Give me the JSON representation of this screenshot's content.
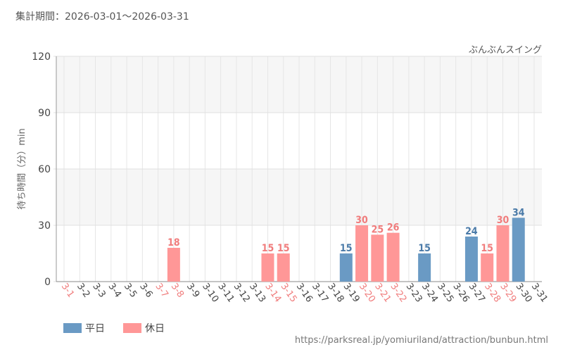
{
  "header": {
    "period": "集計期間：2026-03-01～2026-03-31"
  },
  "source_url": "https://parksreal.jp/yomiuriland/attraction/bunbun.html",
  "colors": {
    "weekday": "#6a9ac4",
    "holiday": "#ff9797",
    "weekday_text": "#4a7aa8",
    "holiday_text": "#f07c7c",
    "axis_text": "#555555"
  },
  "chart_data": {
    "type": "bar",
    "title": "ぶんぶんスイング",
    "ylabel": "待ち時間（分）min",
    "ylim": [
      0,
      120
    ],
    "yticks": [
      0,
      30,
      60,
      90,
      120
    ],
    "grid": true,
    "legend_position": "bottom-left",
    "categories": [
      "3-1",
      "3-2",
      "3-3",
      "3-4",
      "3-5",
      "3-6",
      "3-7",
      "3-8",
      "3-9",
      "3-10",
      "3-11",
      "3-12",
      "3-13",
      "3-14",
      "3-15",
      "3-16",
      "3-17",
      "3-18",
      "3-19",
      "3-20",
      "3-21",
      "3-22",
      "3-23",
      "3-24",
      "3-25",
      "3-26",
      "3-27",
      "3-28",
      "3-29",
      "3-30",
      "3-31"
    ],
    "day_type": [
      "holiday",
      "weekday",
      "weekday",
      "weekday",
      "weekday",
      "weekday",
      "holiday",
      "holiday",
      "weekday",
      "weekday",
      "weekday",
      "weekday",
      "weekday",
      "holiday",
      "holiday",
      "weekday",
      "weekday",
      "weekday",
      "weekday",
      "holiday",
      "holiday",
      "holiday",
      "weekday",
      "weekday",
      "weekday",
      "weekday",
      "weekday",
      "holiday",
      "holiday",
      "weekday",
      "weekday"
    ],
    "values": [
      null,
      null,
      null,
      null,
      null,
      null,
      null,
      18,
      null,
      null,
      null,
      null,
      null,
      15,
      15,
      null,
      null,
      null,
      15,
      30,
      25,
      26,
      null,
      15,
      null,
      null,
      24,
      15,
      30,
      34,
      null
    ],
    "series": [
      {
        "name": "平日",
        "key": "weekday"
      },
      {
        "name": "休日",
        "key": "holiday"
      }
    ]
  }
}
